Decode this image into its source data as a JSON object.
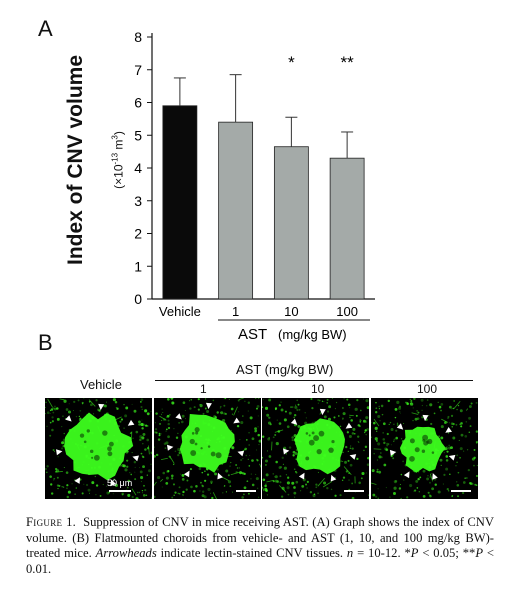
{
  "panel_a": {
    "letter": "A",
    "ylabel": "Index of CNV volume",
    "unit_prefix": "(×10",
    "unit_exp": "-13",
    "unit_suffix": " m",
    "unit_cube": "3",
    "unit_close": ")",
    "group_label": "AST",
    "group_unit": "(mg/kg BW)"
  },
  "chart_data": {
    "type": "bar",
    "categories": [
      "Vehicle",
      "1",
      "10",
      "100"
    ],
    "values": [
      5.9,
      5.4,
      4.65,
      4.3
    ],
    "errors": [
      0.85,
      1.45,
      0.9,
      0.8
    ],
    "significance": [
      "",
      "",
      "*",
      "**"
    ],
    "ylim": [
      0,
      8
    ],
    "yticks": [
      "0",
      "1",
      "2",
      "3",
      "4",
      "5",
      "6",
      "7",
      "8"
    ],
    "colors": [
      "#0a0a0a",
      "#a4aaa8",
      "#a4aaa8",
      "#a4aaa8"
    ],
    "grid": false
  },
  "panel_b": {
    "letter": "B",
    "header": "AST (mg/kg BW)",
    "vehicle_label": "Vehicle",
    "doses": [
      "1",
      "10",
      "100"
    ],
    "scale_label": "50 μm",
    "stain_color": "#3dff1e"
  },
  "caption": {
    "figure": "Figure 1.",
    "sentence1": "Suppression of CNV in mice receiving AST. (A) Graph shows the index of CNV volume. (B) Flatmounted choroids from vehicle- and AST (1, 10, and 100 mg/kg BW)-treated mice.",
    "arrow_word": "Arrowheads",
    "sentence2": "indicate lectin-stained CNV tissues.",
    "n_var": "n",
    "n_value": " = 10-12. ",
    "sig1_mark": "*",
    "sig1_p": "P",
    "sig1_val": " < 0.05; ",
    "sig2_mark": "**",
    "sig2_p": "P",
    "sig2_val": " < 0.01."
  }
}
